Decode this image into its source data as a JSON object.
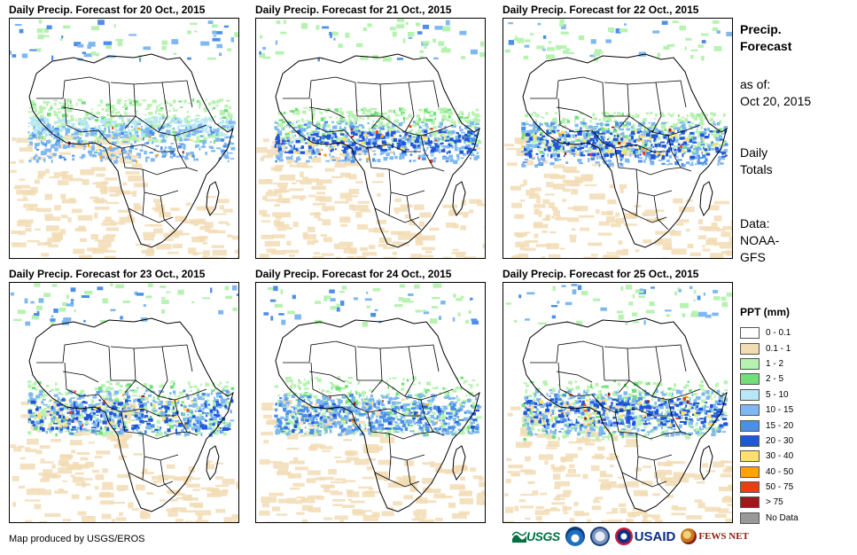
{
  "panels": [
    {
      "title": "Daily Precip. Forecast for 20 Oct., 2015"
    },
    {
      "title": "Daily Precip. Forecast for 21 Oct., 2015"
    },
    {
      "title": "Daily Precip. Forecast for 22 Oct., 2015"
    },
    {
      "title": "Daily Precip. Forecast for 23 Oct., 2015"
    },
    {
      "title": "Daily Precip. Forecast for 24 Oct., 2015"
    },
    {
      "title": "Daily Precip. Forecast for 25 Oct., 2015"
    }
  ],
  "sidebar": {
    "heading_line1": "Precip.",
    "heading_line2": "Forecast",
    "asof_label": "as of:",
    "asof_date": "Oct 20, 2015",
    "totals_line1": "Daily",
    "totals_line2": "Totals",
    "data_label": "Data:",
    "data_source_line1": "NOAA-",
    "data_source_line2": "GFS"
  },
  "legend": {
    "title": "PPT (mm)",
    "items": [
      {
        "label": "0 - 0.1",
        "color": "#ffffff"
      },
      {
        "label": "0.1 - 1",
        "color": "#f2dcb4"
      },
      {
        "label": "1 - 2",
        "color": "#b6f2b0"
      },
      {
        "label": "2 - 5",
        "color": "#6fe07a"
      },
      {
        "label": "5 - 10",
        "color": "#b8e8f8"
      },
      {
        "label": "10 - 15",
        "color": "#7fb8f0"
      },
      {
        "label": "15 - 20",
        "color": "#4c8fe8"
      },
      {
        "label": "20 - 30",
        "color": "#2056d8"
      },
      {
        "label": "30 - 40",
        "color": "#ffe070"
      },
      {
        "label": "40 - 50",
        "color": "#ffa400"
      },
      {
        "label": "50 - 75",
        "color": "#ee3c14"
      },
      {
        "label": "> 75",
        "color": "#a01818"
      },
      {
        "label": "No Data",
        "color": "#999999"
      }
    ]
  },
  "footer": {
    "credit": "Map produced by USGS/EROS",
    "logos": {
      "usgs": "USGS",
      "usaid": "USAID",
      "fews": "FEWS NET"
    }
  }
}
